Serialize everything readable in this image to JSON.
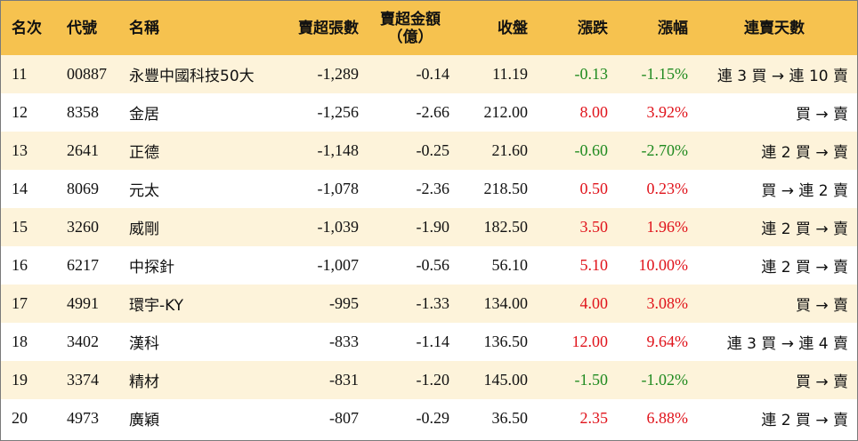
{
  "headers": {
    "rank": "名次",
    "code": "代號",
    "name": "名稱",
    "net_sell_lots": "賣超張數",
    "net_sell_amount_line1": "賣超金額",
    "net_sell_amount_line2": "（億）",
    "close": "收盤",
    "change": "漲跌",
    "change_pct": "漲幅",
    "streak": "連賣天數"
  },
  "colors": {
    "header_bg": "#f6c24f",
    "stripe_bg": "#fdf3da",
    "up": "#e0131b",
    "down": "#1f8a1f"
  },
  "rows": [
    {
      "rank": "11",
      "code": "00887",
      "name": "永豐中國科技50大",
      "lots": "-1,289",
      "amount": "-0.14",
      "close": "11.19",
      "change": "-0.13",
      "pct": "-1.15%",
      "dir": "down",
      "streak": "連 3 買 → 連 10 賣"
    },
    {
      "rank": "12",
      "code": "8358",
      "name": "金居",
      "lots": "-1,256",
      "amount": "-2.66",
      "close": "212.00",
      "change": "8.00",
      "pct": "3.92%",
      "dir": "up",
      "streak": "買 → 賣"
    },
    {
      "rank": "13",
      "code": "2641",
      "name": "正德",
      "lots": "-1,148",
      "amount": "-0.25",
      "close": "21.60",
      "change": "-0.60",
      "pct": "-2.70%",
      "dir": "down",
      "streak": "連 2 買 → 賣"
    },
    {
      "rank": "14",
      "code": "8069",
      "name": "元太",
      "lots": "-1,078",
      "amount": "-2.36",
      "close": "218.50",
      "change": "0.50",
      "pct": "0.23%",
      "dir": "up",
      "streak": "買 → 連 2 賣"
    },
    {
      "rank": "15",
      "code": "3260",
      "name": "威剛",
      "lots": "-1,039",
      "amount": "-1.90",
      "close": "182.50",
      "change": "3.50",
      "pct": "1.96%",
      "dir": "up",
      "streak": "連 2 買 → 賣"
    },
    {
      "rank": "16",
      "code": "6217",
      "name": "中探針",
      "lots": "-1,007",
      "amount": "-0.56",
      "close": "56.10",
      "change": "5.10",
      "pct": "10.00%",
      "dir": "up",
      "streak": "連 2 買 → 賣"
    },
    {
      "rank": "17",
      "code": "4991",
      "name": "環宇-KY",
      "lots": "-995",
      "amount": "-1.33",
      "close": "134.00",
      "change": "4.00",
      "pct": "3.08%",
      "dir": "up",
      "streak": "買 → 賣"
    },
    {
      "rank": "18",
      "code": "3402",
      "name": "漢科",
      "lots": "-833",
      "amount": "-1.14",
      "close": "136.50",
      "change": "12.00",
      "pct": "9.64%",
      "dir": "up",
      "streak": "連 3 買 → 連 4 賣"
    },
    {
      "rank": "19",
      "code": "3374",
      "name": "精材",
      "lots": "-831",
      "amount": "-1.20",
      "close": "145.00",
      "change": "-1.50",
      "pct": "-1.02%",
      "dir": "down",
      "streak": "買 → 賣"
    },
    {
      "rank": "20",
      "code": "4973",
      "name": "廣穎",
      "lots": "-807",
      "amount": "-0.29",
      "close": "36.50",
      "change": "2.35",
      "pct": "6.88%",
      "dir": "up",
      "streak": "連 2 買 → 賣"
    }
  ]
}
